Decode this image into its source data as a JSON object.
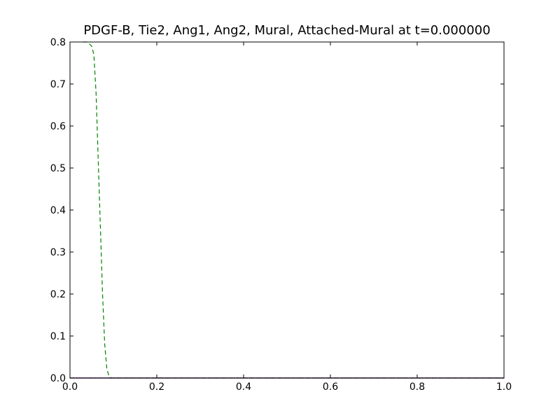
{
  "chart_data": {
    "type": "line",
    "title": "PDGF-B, Tie2, Ang1, Ang2, Mural, Attached-Mural at t=0.000000",
    "xlabel": "",
    "ylabel": "",
    "xlim": [
      0.0,
      1.0
    ],
    "ylim": [
      0.0,
      0.8
    ],
    "x_ticks": [
      "0.0",
      "0.2",
      "0.4",
      "0.6",
      "0.8",
      "1.0"
    ],
    "y_ticks": [
      "0.0",
      "0.1",
      "0.2",
      "0.3",
      "0.4",
      "0.5",
      "0.6",
      "0.7",
      "0.8"
    ],
    "x_tick_values": [
      0.0,
      0.2,
      0.4,
      0.6,
      0.8,
      1.0
    ],
    "y_tick_values": [
      0.0,
      0.1,
      0.2,
      0.3,
      0.4,
      0.5,
      0.6,
      0.7,
      0.8
    ],
    "grid": false,
    "legend": "none",
    "series": [
      {
        "style": "solid",
        "color": "#0000ff",
        "x": [
          0.0,
          1.0
        ],
        "y": [
          0.0,
          0.0
        ]
      },
      {
        "style": "dashed",
        "color": "#008000",
        "x": [
          0.03,
          0.04,
          0.05,
          0.055,
          0.06,
          0.065,
          0.07,
          0.075,
          0.08,
          0.085,
          0.09,
          0.095,
          0.1,
          1.0
        ],
        "y": [
          0.8,
          0.8,
          0.79,
          0.77,
          0.68,
          0.52,
          0.36,
          0.2,
          0.08,
          0.02,
          0.005,
          0.0,
          0.0,
          0.0
        ]
      },
      {
        "style": "dotted",
        "color": "#ff0000",
        "x": [
          0.0,
          1.0
        ],
        "y": [
          0.0,
          0.0
        ]
      },
      {
        "style": "dashdot",
        "color": "#00bfbf",
        "x": [
          0.0,
          1.0
        ],
        "y": [
          0.0,
          0.0
        ]
      },
      {
        "style": "solid",
        "color": "#bf00bf",
        "x": [
          0.0,
          1.0
        ],
        "y": [
          0.0,
          0.0
        ]
      },
      {
        "style": "dashed",
        "color": "#bfbf00",
        "x": [
          0.0,
          1.0
        ],
        "y": [
          0.0,
          0.0
        ]
      }
    ]
  }
}
